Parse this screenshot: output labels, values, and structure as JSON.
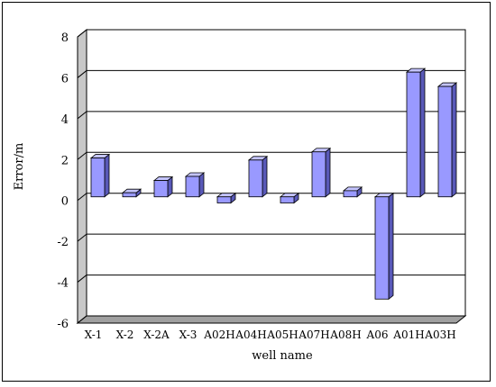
{
  "chart_data": {
    "type": "bar",
    "title": "",
    "xlabel": "well name",
    "ylabel": "Error/m",
    "categories": [
      "X-1",
      "X-2",
      "X-2A",
      "X-3",
      "A02H",
      "A04H",
      "A05H",
      "A07H",
      "A08H",
      "A06",
      "A01H",
      "A03H"
    ],
    "values": [
      1.9,
      0.2,
      0.8,
      1.0,
      -0.3,
      1.8,
      -0.3,
      2.2,
      0.3,
      -5.0,
      6.1,
      5.4
    ],
    "ylim": [
      -6,
      8
    ],
    "yticks": [
      "-6",
      "-4",
      "-2",
      "0",
      "2",
      "4",
      "6",
      "8"
    ],
    "grid": true,
    "legend": "none",
    "colors": {
      "bar_front": "#9999ff",
      "bar_top": "#c4c4ff",
      "bar_side": "#5959b8",
      "back_wall": "#ffffff",
      "side_wall": "#c8c8c8",
      "floor": "#a0a0a0"
    }
  }
}
